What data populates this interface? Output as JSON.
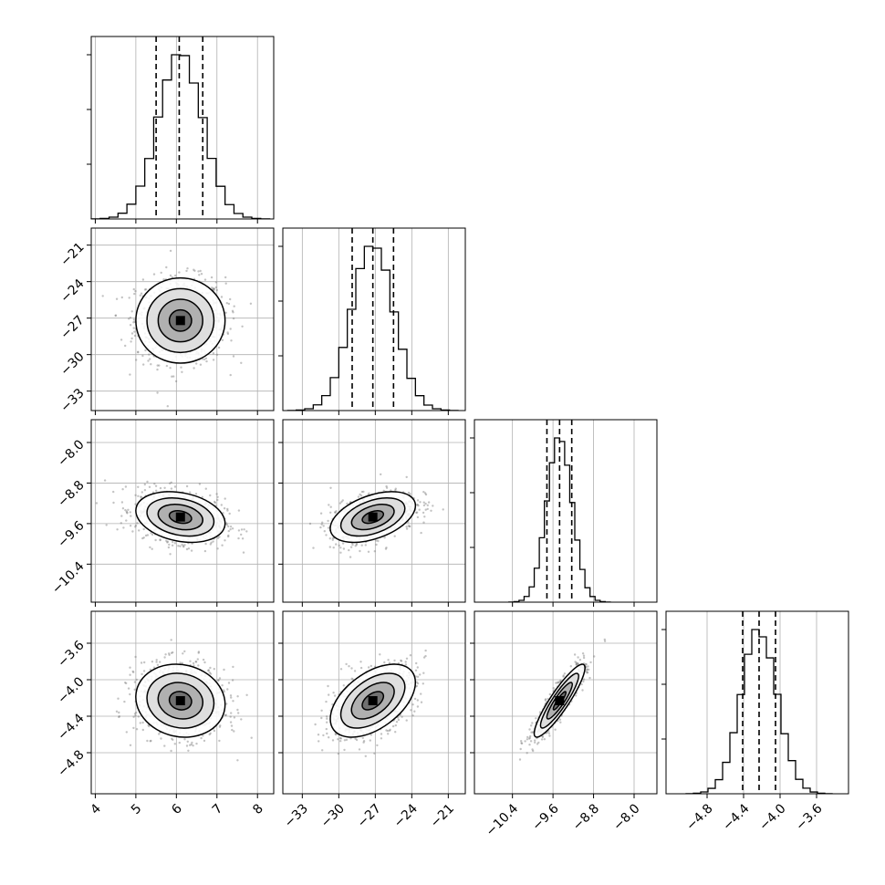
{
  "chart_data": {
    "type": "corner",
    "parameters": 4,
    "grid": true,
    "ranges": [
      [
        3.9,
        8.4
      ],
      [
        -34.6,
        -19.6
      ],
      [
        -11.15,
        -7.55
      ],
      [
        -5.25,
        -3.25
      ]
    ],
    "ticks": [
      {
        "values": [
          4,
          5,
          6,
          7,
          8
        ],
        "labels": [
          "4",
          "5",
          "6",
          "7",
          "8"
        ]
      },
      {
        "values": [
          -33,
          -30,
          -27,
          -24,
          -21
        ],
        "labels": [
          "−33",
          "−30",
          "−27",
          "−24",
          "−21"
        ]
      },
      {
        "values": [
          -10.4,
          -9.6,
          -8.8,
          -8.0
        ],
        "labels": [
          "−10.4",
          "−9.6",
          "−8.8",
          "−8.0"
        ]
      },
      {
        "values": [
          -4.8,
          -4.4,
          -4.0,
          -3.6
        ],
        "labels": [
          "−4.8",
          "−4.4",
          "−4.0",
          "−3.6"
        ]
      }
    ],
    "marginals": [
      {
        "mean": 6.1,
        "sd": 0.55,
        "quantiles": [
          5.5,
          6.07,
          6.65
        ]
      },
      {
        "mean": -27.2,
        "sd": 1.75,
        "quantiles": [
          -28.9,
          -27.2,
          -25.5
        ]
      },
      {
        "mean": -9.47,
        "sd": 0.25,
        "quantiles": [
          -9.72,
          -9.47,
          -9.23
        ]
      },
      {
        "mean": -4.23,
        "sd": 0.2,
        "quantiles": [
          -4.41,
          -4.23,
          -4.05
        ]
      }
    ],
    "correlations": [
      [
        1.0,
        0.0,
        -0.25,
        -0.1
      ],
      [
        0.0,
        1.0,
        0.45,
        0.5
      ],
      [
        -0.25,
        0.45,
        1.0,
        0.9
      ],
      [
        -0.1,
        0.5,
        0.9,
        1.0
      ]
    ],
    "contour_levels_sigma": [
      0.5,
      1.0,
      1.5,
      2.0
    ]
  }
}
